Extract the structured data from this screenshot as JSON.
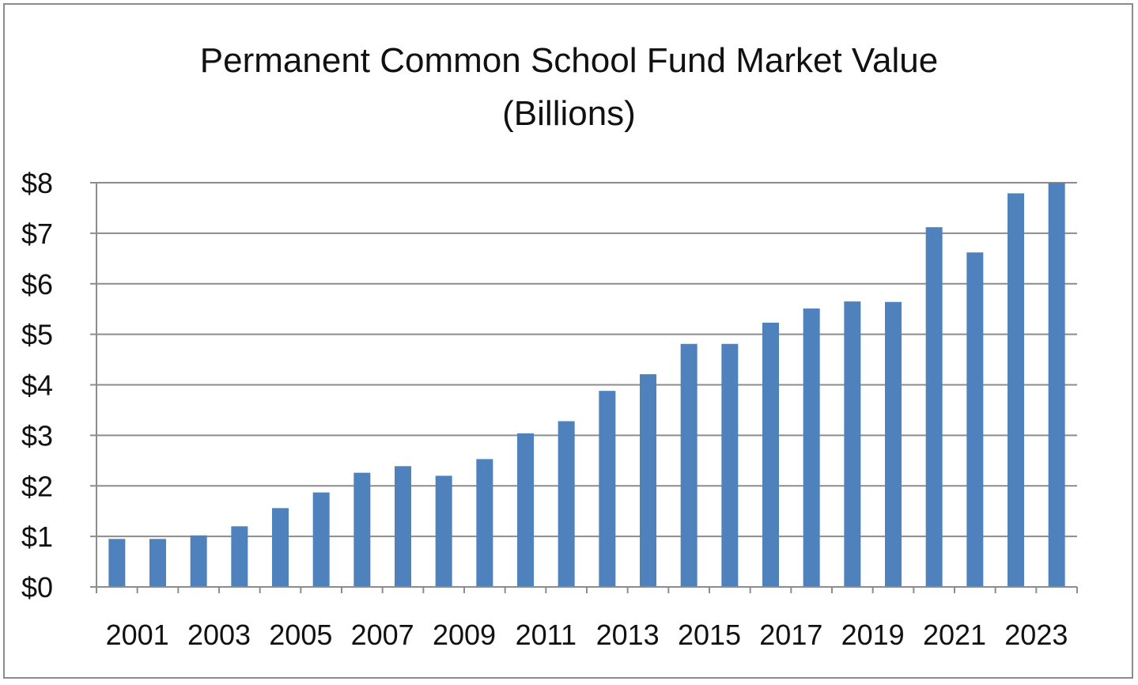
{
  "chart_data": {
    "type": "bar",
    "title": "Permanent Common School Fund Market Value",
    "subtitle": "(Billions)",
    "xlabel": "",
    "ylabel": "",
    "categories": [
      "2001",
      "2002",
      "2003",
      "2004",
      "2005",
      "2006",
      "2007",
      "2008",
      "2009",
      "2010",
      "2011",
      "2012",
      "2013",
      "2014",
      "2015",
      "2016",
      "2017",
      "2018",
      "2019",
      "2020",
      "2021",
      "2022",
      "2023",
      "2024"
    ],
    "x_tick_labels": [
      "2001",
      "2003",
      "2005",
      "2007",
      "2009",
      "2011",
      "2013",
      "2015",
      "2017",
      "2019",
      "2021",
      "2023"
    ],
    "values": [
      0.95,
      0.95,
      1.02,
      1.2,
      1.56,
      1.87,
      2.26,
      2.39,
      2.2,
      2.53,
      3.04,
      3.28,
      3.88,
      4.21,
      4.81,
      4.81,
      5.23,
      5.51,
      5.65,
      5.64,
      7.12,
      6.62,
      7.79,
      8.0
    ],
    "ylim": [
      0,
      8
    ],
    "y_ticks": [
      0,
      1,
      2,
      3,
      4,
      5,
      6,
      7,
      8
    ],
    "y_tick_labels": [
      "$0",
      "$1",
      "$2",
      "$3",
      "$4",
      "$5",
      "$6",
      "$7",
      "$8"
    ],
    "grid": true,
    "legend": "none",
    "colors": {
      "bar": "#4f81bd",
      "grid": "#8c8c8c",
      "axis": "#8c8c8c",
      "frame": "#8c8c8c"
    }
  }
}
